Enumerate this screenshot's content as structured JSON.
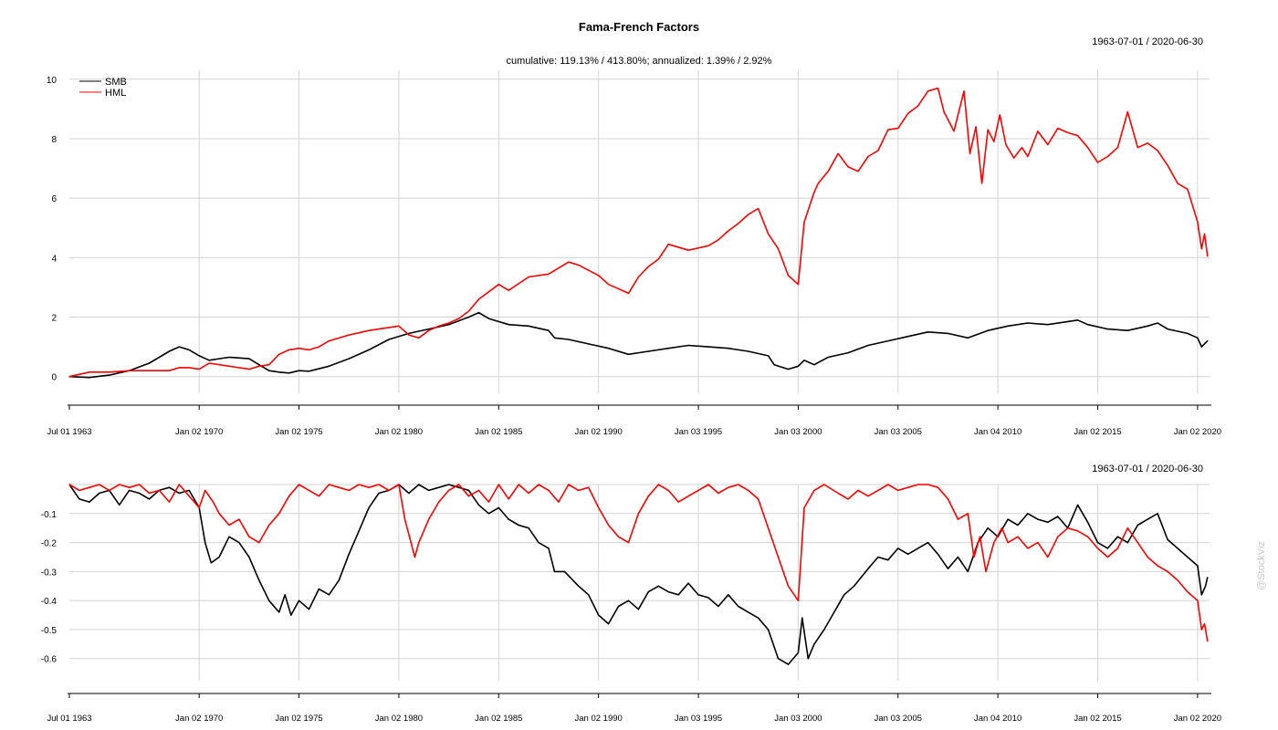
{
  "chart_data": [
    {
      "type": "line",
      "title": "Fama-French Factors",
      "subtitle": "cumulative: 119.13% / 413.80%; annualized: 1.39% / 2.92%",
      "date_range": "1963-07-01 / 2020-06-30",
      "xlabel": "",
      "ylabel": "",
      "grid": true,
      "legend": "top-left",
      "xlim": [
        1963.5,
        2020.6
      ],
      "ylim": [
        -0.5,
        10.3
      ],
      "yticks": [
        0,
        2,
        4,
        6,
        8,
        10
      ],
      "ytick_labels": [
        "0",
        "2",
        "4",
        "6",
        "8",
        "10"
      ],
      "xticks": [
        1963.5,
        1970.0,
        1975.0,
        1980.0,
        1985.0,
        1990.0,
        1995.0,
        2000.0,
        2005.0,
        2010.0,
        2015.0,
        2020.0
      ],
      "xtick_labels": [
        "Jul 01 1963",
        "Jan 02 1970",
        "Jan 02 1975",
        "Jan 02 1980",
        "Jan 02 1985",
        "Jan 02 1990",
        "Jan 03 1995",
        "Jan 03 2000",
        "Jan 03 2005",
        "Jan 04 2010",
        "Jan 02 2015",
        "Jan 02 2020"
      ],
      "series": [
        {
          "name": "SMB",
          "color": "#000000",
          "x": [
            1963.5,
            1964.5,
            1965.5,
            1966.5,
            1967.5,
            1968.5,
            1969.0,
            1969.5,
            1970.0,
            1970.5,
            1971.5,
            1972.5,
            1973.0,
            1973.5,
            1974.0,
            1974.5,
            1975.0,
            1975.5,
            1976.5,
            1977.5,
            1978.5,
            1979.5,
            1980.5,
            1981.5,
            1982.5,
            1983.5,
            1984.0,
            1984.5,
            1985.5,
            1986.5,
            1987.5,
            1987.8,
            1988.5,
            1989.5,
            1990.5,
            1991.5,
            1992.5,
            1993.5,
            1994.5,
            1995.5,
            1996.5,
            1997.5,
            1998.5,
            1998.8,
            1999.5,
            2000.0,
            2000.3,
            2000.8,
            2001.5,
            2002.5,
            2003.5,
            2004.5,
            2005.5,
            2006.5,
            2007.5,
            2008.5,
            2009.5,
            2010.5,
            2011.5,
            2012.5,
            2013.5,
            2014.0,
            2014.5,
            2015.5,
            2016.5,
            2017.5,
            2018.0,
            2018.5,
            2019.5,
            2020.0,
            2020.2,
            2020.5
          ],
          "values": [
            0.0,
            -0.03,
            0.05,
            0.2,
            0.45,
            0.85,
            1.0,
            0.9,
            0.7,
            0.55,
            0.65,
            0.6,
            0.4,
            0.2,
            0.15,
            0.12,
            0.2,
            0.18,
            0.35,
            0.6,
            0.9,
            1.25,
            1.45,
            1.6,
            1.75,
            2.0,
            2.15,
            1.95,
            1.75,
            1.7,
            1.55,
            1.3,
            1.25,
            1.1,
            0.95,
            0.75,
            0.85,
            0.95,
            1.05,
            1.0,
            0.95,
            0.85,
            0.7,
            0.4,
            0.25,
            0.35,
            0.55,
            0.4,
            0.65,
            0.8,
            1.05,
            1.2,
            1.35,
            1.5,
            1.45,
            1.3,
            1.55,
            1.7,
            1.8,
            1.75,
            1.85,
            1.9,
            1.75,
            1.6,
            1.55,
            1.7,
            1.8,
            1.6,
            1.45,
            1.3,
            1.0,
            1.2
          ]
        },
        {
          "name": "HML",
          "color": "#ff0000",
          "x": [
            1963.5,
            1964.5,
            1965.5,
            1966.5,
            1967.5,
            1968.5,
            1969.0,
            1969.5,
            1970.0,
            1970.5,
            1971.5,
            1972.5,
            1973.0,
            1973.5,
            1974.0,
            1974.5,
            1975.0,
            1975.5,
            1976.0,
            1976.5,
            1977.5,
            1978.5,
            1979.5,
            1980.0,
            1980.5,
            1981.0,
            1981.5,
            1982.0,
            1982.5,
            1983.0,
            1983.5,
            1984.0,
            1985.0,
            1985.5,
            1986.5,
            1987.5,
            1988.5,
            1989.0,
            1990.0,
            1990.5,
            1991.5,
            1992.0,
            1992.5,
            1993.0,
            1993.5,
            1994.5,
            1995.5,
            1996.0,
            1996.5,
            1997.0,
            1997.5,
            1998.0,
            1998.5,
            1999.0,
            1999.5,
            2000.0,
            2000.3,
            2000.8,
            2001.0,
            2001.5,
            2002.0,
            2002.5,
            2003.0,
            2003.5,
            2004.0,
            2004.5,
            2005.0,
            2005.5,
            2006.0,
            2006.5,
            2007.0,
            2007.3,
            2007.8,
            2008.3,
            2008.6,
            2008.9,
            2009.2,
            2009.5,
            2009.8,
            2010.1,
            2010.4,
            2010.8,
            2011.2,
            2011.5,
            2012.0,
            2012.5,
            2013.0,
            2013.5,
            2014.0,
            2014.5,
            2015.0,
            2015.5,
            2016.0,
            2016.5,
            2017.0,
            2017.5,
            2018.0,
            2018.5,
            2019.0,
            2019.5,
            2020.0,
            2020.2,
            2020.35,
            2020.5
          ],
          "values": [
            0.0,
            0.15,
            0.15,
            0.2,
            0.2,
            0.2,
            0.3,
            0.3,
            0.25,
            0.45,
            0.35,
            0.25,
            0.35,
            0.4,
            0.75,
            0.9,
            0.95,
            0.9,
            1.0,
            1.2,
            1.4,
            1.55,
            1.65,
            1.7,
            1.4,
            1.3,
            1.55,
            1.7,
            1.8,
            1.95,
            2.2,
            2.6,
            3.1,
            2.9,
            3.35,
            3.45,
            3.85,
            3.75,
            3.4,
            3.1,
            2.8,
            3.35,
            3.7,
            3.95,
            4.45,
            4.25,
            4.4,
            4.6,
            4.9,
            5.15,
            5.45,
            5.65,
            4.8,
            4.3,
            3.4,
            3.1,
            5.2,
            6.2,
            6.5,
            6.9,
            7.5,
            7.05,
            6.9,
            7.4,
            7.6,
            8.3,
            8.35,
            8.85,
            9.1,
            9.6,
            9.7,
            8.9,
            8.25,
            9.6,
            7.5,
            8.4,
            6.5,
            8.3,
            7.9,
            8.8,
            7.8,
            7.35,
            7.7,
            7.4,
            8.25,
            7.8,
            8.35,
            8.2,
            8.1,
            7.7,
            7.2,
            7.4,
            7.7,
            8.9,
            7.7,
            7.85,
            7.6,
            7.1,
            6.5,
            6.3,
            5.2,
            4.3,
            4.8,
            4.05
          ]
        }
      ]
    },
    {
      "type": "line",
      "title": "",
      "date_range": "1963-07-01 / 2020-06-30",
      "xlabel": "",
      "ylabel": "",
      "grid": true,
      "xlim": [
        1963.5,
        2020.6
      ],
      "ylim": [
        -0.67,
        0.0
      ],
      "yticks": [
        -0.1,
        -0.2,
        -0.3,
        -0.4,
        -0.5,
        -0.6
      ],
      "ytick_labels": [
        "-0.1",
        "-0.2",
        "-0.3",
        "-0.4",
        "-0.5",
        "-0.6"
      ],
      "xticks": [
        1963.5,
        1970.0,
        1975.0,
        1980.0,
        1985.0,
        1990.0,
        1995.0,
        2000.0,
        2005.0,
        2010.0,
        2015.0,
        2020.0
      ],
      "xtick_labels": [
        "Jul 01 1963",
        "Jan 02 1970",
        "Jan 02 1975",
        "Jan 02 1980",
        "Jan 02 1985",
        "Jan 02 1990",
        "Jan 03 1995",
        "Jan 03 2000",
        "Jan 03 2005",
        "Jan 04 2010",
        "Jan 02 2015",
        "Jan 02 2020"
      ],
      "series": [
        {
          "name": "SMB",
          "color": "#000000",
          "x": [
            1963.5,
            1964.0,
            1964.5,
            1965.0,
            1965.5,
            1966.0,
            1966.5,
            1967.0,
            1967.5,
            1968.0,
            1968.5,
            1969.0,
            1969.5,
            1970.0,
            1970.3,
            1970.6,
            1971.0,
            1971.5,
            1972.0,
            1972.5,
            1973.0,
            1973.5,
            1974.0,
            1974.3,
            1974.6,
            1975.0,
            1975.5,
            1976.0,
            1976.5,
            1977.0,
            1977.5,
            1978.0,
            1978.5,
            1979.0,
            1979.5,
            1980.0,
            1980.5,
            1981.0,
            1981.5,
            1982.0,
            1982.5,
            1983.0,
            1983.5,
            1984.0,
            1984.5,
            1985.0,
            1985.5,
            1986.0,
            1986.5,
            1987.0,
            1987.5,
            1987.8,
            1988.3,
            1989.0,
            1989.5,
            1990.0,
            1990.5,
            1991.0,
            1991.5,
            1992.0,
            1992.5,
            1993.0,
            1993.5,
            1994.0,
            1994.5,
            1995.0,
            1995.5,
            1996.0,
            1996.5,
            1997.0,
            1997.5,
            1998.0,
            1998.5,
            1999.0,
            1999.5,
            2000.0,
            2000.2,
            2000.5,
            2000.8,
            2001.3,
            2001.8,
            2002.3,
            2002.8,
            2003.5,
            2004.0,
            2004.5,
            2005.0,
            2005.5,
            2006.0,
            2006.5,
            2007.0,
            2007.5,
            2008.0,
            2008.5,
            2009.0,
            2009.5,
            2010.0,
            2010.5,
            2011.0,
            2011.5,
            2012.0,
            2012.5,
            2013.0,
            2013.5,
            2014.0,
            2014.5,
            2015.0,
            2015.5,
            2016.0,
            2016.5,
            2017.0,
            2017.5,
            2018.0,
            2018.5,
            2019.0,
            2019.5,
            2020.0,
            2020.2,
            2020.4,
            2020.5
          ],
          "values": [
            0.0,
            -0.05,
            -0.06,
            -0.03,
            -0.02,
            -0.07,
            -0.02,
            -0.03,
            -0.05,
            -0.02,
            -0.01,
            -0.03,
            -0.02,
            -0.08,
            -0.2,
            -0.27,
            -0.25,
            -0.18,
            -0.2,
            -0.25,
            -0.33,
            -0.4,
            -0.44,
            -0.38,
            -0.45,
            -0.4,
            -0.43,
            -0.36,
            -0.38,
            -0.33,
            -0.24,
            -0.16,
            -0.08,
            -0.03,
            -0.02,
            0.0,
            -0.03,
            0.0,
            -0.02,
            -0.01,
            0.0,
            -0.01,
            -0.02,
            -0.07,
            -0.1,
            -0.08,
            -0.12,
            -0.14,
            -0.15,
            -0.2,
            -0.22,
            -0.3,
            -0.3,
            -0.35,
            -0.38,
            -0.45,
            -0.48,
            -0.42,
            -0.4,
            -0.43,
            -0.37,
            -0.35,
            -0.37,
            -0.38,
            -0.34,
            -0.38,
            -0.39,
            -0.42,
            -0.38,
            -0.42,
            -0.44,
            -0.46,
            -0.5,
            -0.6,
            -0.62,
            -0.58,
            -0.46,
            -0.6,
            -0.55,
            -0.5,
            -0.44,
            -0.38,
            -0.35,
            -0.29,
            -0.25,
            -0.26,
            -0.22,
            -0.24,
            -0.22,
            -0.2,
            -0.24,
            -0.29,
            -0.25,
            -0.3,
            -0.2,
            -0.15,
            -0.18,
            -0.12,
            -0.14,
            -0.1,
            -0.12,
            -0.13,
            -0.11,
            -0.15,
            -0.07,
            -0.13,
            -0.2,
            -0.22,
            -0.18,
            -0.2,
            -0.14,
            -0.12,
            -0.1,
            -0.19,
            -0.22,
            -0.25,
            -0.28,
            -0.38,
            -0.35,
            -0.32
          ]
        },
        {
          "name": "HML",
          "color": "#ff0000",
          "x": [
            1963.5,
            1964.0,
            1964.5,
            1965.0,
            1965.5,
            1966.0,
            1966.5,
            1967.0,
            1967.5,
            1968.0,
            1968.5,
            1969.0,
            1969.5,
            1970.0,
            1970.3,
            1970.7,
            1971.0,
            1971.5,
            1972.0,
            1972.5,
            1973.0,
            1973.5,
            1974.0,
            1974.5,
            1975.0,
            1975.5,
            1976.0,
            1976.5,
            1977.0,
            1977.5,
            1978.0,
            1978.5,
            1979.0,
            1979.5,
            1980.0,
            1980.3,
            1980.8,
            1981.0,
            1981.5,
            1982.0,
            1982.5,
            1983.0,
            1983.5,
            1984.0,
            1984.5,
            1985.0,
            1985.5,
            1986.0,
            1986.5,
            1987.0,
            1987.5,
            1988.0,
            1988.5,
            1989.0,
            1989.5,
            1990.0,
            1990.5,
            1991.0,
            1991.5,
            1992.0,
            1992.5,
            1993.0,
            1993.5,
            1994.0,
            1994.5,
            1995.0,
            1995.5,
            1996.0,
            1996.5,
            1997.0,
            1997.5,
            1998.0,
            1998.5,
            1999.0,
            1999.5,
            2000.0,
            2000.3,
            2000.8,
            2001.3,
            2002.0,
            2002.5,
            2003.0,
            2003.5,
            2004.0,
            2004.5,
            2005.0,
            2005.5,
            2006.0,
            2006.5,
            2007.0,
            2007.5,
            2008.0,
            2008.5,
            2008.8,
            2009.1,
            2009.4,
            2009.8,
            2010.2,
            2010.5,
            2011.0,
            2011.5,
            2012.0,
            2012.5,
            2013.0,
            2013.5,
            2014.0,
            2014.5,
            2015.0,
            2015.5,
            2016.0,
            2016.5,
            2017.0,
            2017.5,
            2018.0,
            2018.5,
            2019.0,
            2019.5,
            2020.0,
            2020.2,
            2020.35,
            2020.5
          ],
          "values": [
            0.0,
            -0.02,
            -0.01,
            0.0,
            -0.02,
            0.0,
            -0.01,
            0.0,
            -0.03,
            -0.02,
            -0.06,
            0.0,
            -0.04,
            -0.08,
            -0.02,
            -0.06,
            -0.1,
            -0.14,
            -0.12,
            -0.18,
            -0.2,
            -0.14,
            -0.1,
            -0.04,
            0.0,
            -0.02,
            -0.04,
            0.0,
            -0.01,
            -0.02,
            0.0,
            -0.01,
            0.0,
            -0.02,
            0.0,
            -0.12,
            -0.25,
            -0.2,
            -0.12,
            -0.06,
            -0.02,
            0.0,
            -0.04,
            -0.02,
            -0.06,
            0.0,
            -0.05,
            0.0,
            -0.03,
            0.0,
            -0.02,
            -0.06,
            0.0,
            -0.02,
            -0.01,
            -0.08,
            -0.14,
            -0.18,
            -0.2,
            -0.1,
            -0.04,
            0.0,
            -0.02,
            -0.06,
            -0.04,
            -0.02,
            0.0,
            -0.03,
            -0.01,
            0.0,
            -0.02,
            -0.05,
            -0.15,
            -0.25,
            -0.35,
            -0.4,
            -0.08,
            -0.02,
            0.0,
            -0.03,
            -0.05,
            -0.02,
            -0.04,
            -0.02,
            0.0,
            -0.02,
            -0.01,
            0.0,
            0.0,
            -0.01,
            -0.05,
            -0.12,
            -0.1,
            -0.25,
            -0.18,
            -0.3,
            -0.2,
            -0.15,
            -0.2,
            -0.18,
            -0.22,
            -0.2,
            -0.25,
            -0.18,
            -0.15,
            -0.16,
            -0.18,
            -0.22,
            -0.25,
            -0.22,
            -0.15,
            -0.2,
            -0.25,
            -0.28,
            -0.3,
            -0.33,
            -0.37,
            -0.4,
            -0.5,
            -0.48,
            -0.54
          ]
        }
      ]
    }
  ],
  "watermark": "@StockViz"
}
